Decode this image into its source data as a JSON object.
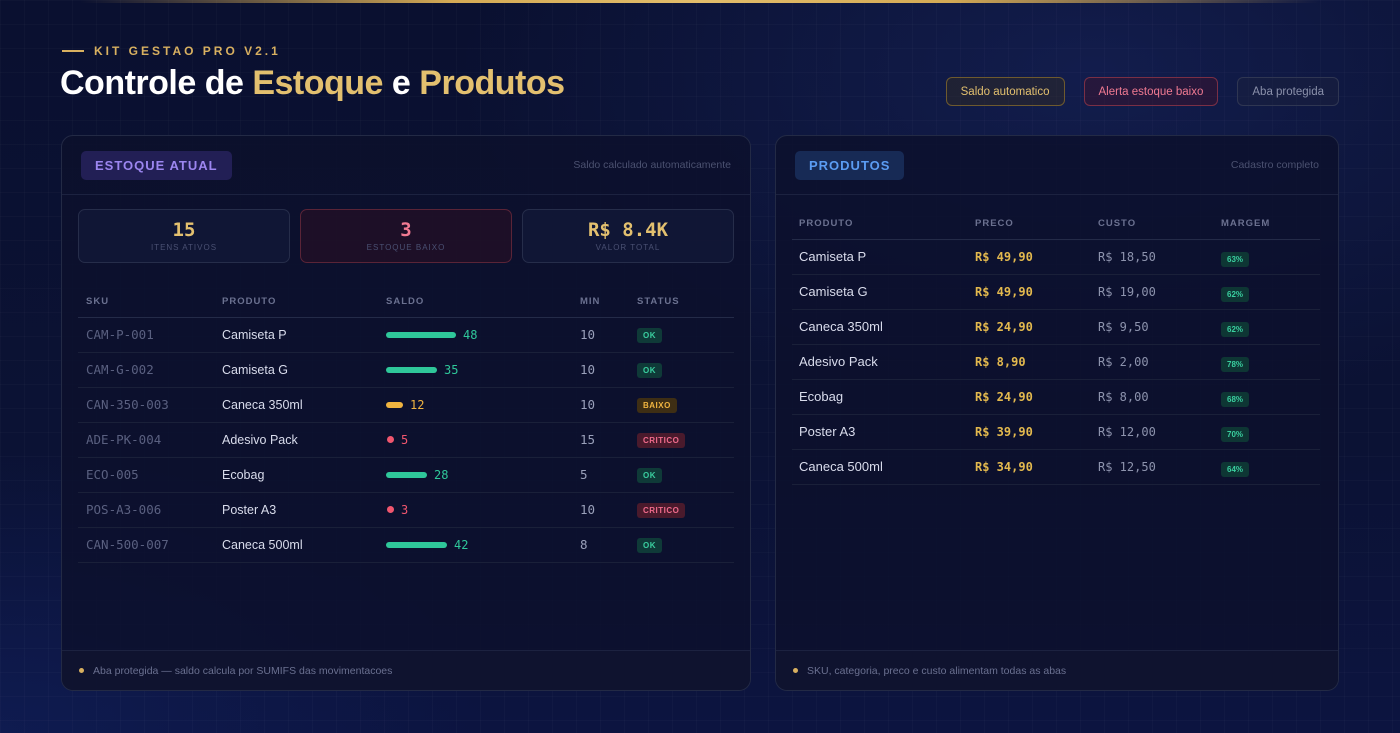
{
  "header": {
    "kicker": "KIT GESTAO PRO V2.1",
    "title_part1": "Controle de ",
    "title_gold1": "Estoque",
    "title_part2": " e ",
    "title_gold2": "Produtos",
    "chips": [
      {
        "label": "Saldo automatico",
        "color": "#e3c06f"
      },
      {
        "label": "Alerta estoque baixo",
        "color": "#f07a92"
      },
      {
        "label": "Aba protegida",
        "color": "#8a90aa"
      }
    ]
  },
  "stock_panel": {
    "tag": "ESTOQUE ATUAL",
    "subtitle": "Saldo calculado automaticamente",
    "stats": [
      {
        "value": "15",
        "label": "ITENS ATIVOS"
      },
      {
        "value": "3",
        "label": "ESTOQUE BAIXO"
      },
      {
        "value": "R$ 8.4K",
        "label": "VALOR TOTAL"
      }
    ],
    "columns": [
      "SKU",
      "PRODUTO",
      "SALDO",
      "MIN",
      "STATUS"
    ],
    "rows": [
      {
        "sku": "CAM-P-001",
        "produto": "Camiseta P",
        "saldo": "48",
        "min": "10",
        "status": "OK",
        "level": "ok"
      },
      {
        "sku": "CAM-G-002",
        "produto": "Camiseta G",
        "saldo": "35",
        "min": "10",
        "status": "OK",
        "level": "ok"
      },
      {
        "sku": "CAN-350-003",
        "produto": "Caneca 350ml",
        "saldo": "12",
        "min": "10",
        "status": "BAIXO",
        "level": "low"
      },
      {
        "sku": "ADE-PK-004",
        "produto": "Adesivo Pack",
        "saldo": "5",
        "min": "15",
        "status": "CRITICO",
        "level": "crit"
      },
      {
        "sku": "ECO-005",
        "produto": "Ecobag",
        "saldo": "28",
        "min": "5",
        "status": "OK",
        "level": "ok"
      },
      {
        "sku": "POS-A3-006",
        "produto": "Poster A3",
        "saldo": "3",
        "min": "10",
        "status": "CRITICO",
        "level": "crit"
      },
      {
        "sku": "CAN-500-007",
        "produto": "Caneca 500ml",
        "saldo": "42",
        "min": "8",
        "status": "OK",
        "level": "ok"
      }
    ],
    "footer": "Aba protegida — saldo calcula por SUMIFS das movimentacoes"
  },
  "products_panel": {
    "tag": "PRODUTOS",
    "subtitle": "Cadastro completo",
    "columns": [
      "PRODUTO",
      "PRECO",
      "CUSTO",
      "MARGEM"
    ],
    "rows": [
      {
        "produto": "Camiseta P",
        "preco": "R$ 49,90",
        "custo": "R$ 18,50",
        "margem": "63%"
      },
      {
        "produto": "Camiseta G",
        "preco": "R$ 49,90",
        "custo": "R$ 19,00",
        "margem": "62%"
      },
      {
        "produto": "Caneca 350ml",
        "preco": "R$ 24,90",
        "custo": "R$ 9,50",
        "margem": "62%"
      },
      {
        "produto": "Adesivo Pack",
        "preco": "R$ 8,90",
        "custo": "R$ 2,00",
        "margem": "78%"
      },
      {
        "produto": "Ecobag",
        "preco": "R$ 24,90",
        "custo": "R$ 8,00",
        "margem": "68%"
      },
      {
        "produto": "Poster A3",
        "preco": "R$ 39,90",
        "custo": "R$ 12,00",
        "margem": "70%"
      },
      {
        "produto": "Caneca 500ml",
        "preco": "R$ 34,90",
        "custo": "R$ 12,50",
        "margem": "64%"
      }
    ],
    "footer": "SKU, categoria, preco e custo alimentam todas as abas"
  },
  "colors": {
    "gold": "#e3c06f",
    "ok": "#2fc79a",
    "low": "#f0b440",
    "crit": "#f0566e",
    "purple": "#9c86f0",
    "blue": "#5b9cf3"
  }
}
